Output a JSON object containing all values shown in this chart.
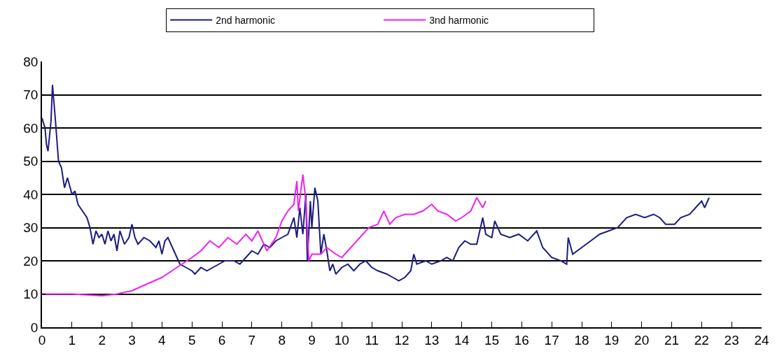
{
  "chart_data": {
    "type": "line",
    "xlim": [
      0,
      24
    ],
    "xticks": [
      0,
      1,
      2,
      3,
      4,
      5,
      6,
      7,
      8,
      9,
      10,
      11,
      12,
      13,
      14,
      15,
      16,
      17,
      18,
      19,
      20,
      21,
      22,
      23,
      24
    ],
    "ylim": [
      0,
      80
    ],
    "yticks": [
      0,
      10,
      20,
      30,
      40,
      50,
      60,
      70,
      80
    ],
    "grid": "y",
    "legend": "top",
    "marker": "none",
    "line_style": "solid",
    "series": [
      {
        "name": "2nd harmonic",
        "color": "#1c1c80",
        "x": [
          0,
          0.1,
          0.15,
          0.2,
          0.3,
          0.35,
          0.45,
          0.55,
          0.65,
          0.75,
          0.85,
          1.0,
          1.1,
          1.2,
          1.35,
          1.5,
          1.6,
          1.7,
          1.8,
          1.9,
          2.0,
          2.1,
          2.2,
          2.3,
          2.4,
          2.5,
          2.6,
          2.75,
          2.9,
          3.0,
          3.1,
          3.2,
          3.4,
          3.6,
          3.8,
          3.9,
          4.0,
          4.1,
          4.2,
          4.3,
          4.5,
          4.6,
          4.8,
          5.0,
          5.1,
          5.3,
          5.5,
          5.7,
          5.9,
          6.1,
          6.4,
          6.6,
          6.8,
          7.0,
          7.2,
          7.4,
          7.6,
          7.8,
          8.0,
          8.2,
          8.4,
          8.5,
          8.6,
          8.7,
          8.8,
          8.85,
          8.95,
          9.0,
          9.1,
          9.2,
          9.3,
          9.4,
          9.5,
          9.6,
          9.7,
          9.8,
          10.0,
          10.2,
          10.4,
          10.6,
          10.8,
          11.0,
          11.2,
          11.5,
          11.7,
          11.9,
          12.1,
          12.3,
          12.4,
          12.5,
          12.8,
          13.0,
          13.3,
          13.5,
          13.7,
          13.9,
          14.1,
          14.3,
          14.5,
          14.7,
          14.8,
          15.0,
          15.1,
          15.3,
          15.6,
          15.9,
          16.2,
          16.5,
          16.7,
          17.0,
          17.3,
          17.5,
          17.55,
          17.7,
          18.0,
          18.3,
          18.6,
          18.9,
          19.2,
          19.5,
          19.8,
          20.1,
          20.4,
          20.6,
          20.8,
          21.1,
          21.3,
          21.6,
          21.8,
          22.0,
          22.1,
          22.25
        ],
        "values": [
          63,
          60,
          55,
          53,
          62,
          73,
          62,
          50,
          48,
          42,
          45,
          40,
          41,
          37,
          35,
          33,
          30,
          25,
          29,
          27,
          28,
          25,
          29,
          26,
          28,
          23,
          29,
          25,
          27,
          31,
          27,
          25,
          27,
          26,
          24,
          26,
          22,
          26,
          27,
          25,
          21,
          19,
          18,
          17,
          16,
          18,
          17,
          18,
          19,
          20,
          20,
          19,
          21,
          23,
          22,
          25,
          24,
          26,
          27,
          28,
          33,
          27,
          36,
          28,
          40,
          20,
          38,
          30,
          42,
          38,
          22,
          28,
          23,
          17,
          19,
          16,
          18,
          19,
          17,
          19,
          20,
          18,
          17,
          16,
          15,
          14,
          15,
          17,
          22,
          19,
          20,
          19,
          20,
          21,
          20,
          24,
          26,
          25,
          25,
          33,
          28,
          27,
          32,
          28,
          27,
          28,
          26,
          29,
          24,
          21,
          20,
          19,
          27,
          22,
          24,
          26,
          28,
          29,
          30,
          33,
          34,
          33,
          34,
          33,
          31,
          31,
          33,
          34,
          36,
          38,
          36,
          39
        ]
      },
      {
        "name": "3nd harmonic",
        "color": "#ee22ee",
        "x": [
          0,
          1,
          2,
          2.5,
          3,
          3.5,
          4,
          4.5,
          5,
          5.3,
          5.6,
          5.9,
          6.2,
          6.5,
          6.8,
          7.0,
          7.2,
          7.5,
          7.8,
          8.0,
          8.2,
          8.4,
          8.5,
          8.55,
          8.7,
          8.8,
          8.9,
          9.0,
          9.3,
          9.5,
          9.8,
          10.0,
          10.3,
          10.6,
          10.9,
          11.2,
          11.4,
          11.6,
          11.8,
          12.1,
          12.4,
          12.7,
          13.0,
          13.2,
          13.5,
          13.8,
          14.0,
          14.3,
          14.5,
          14.7,
          14.8
        ],
        "values": [
          10,
          10,
          9.5,
          10,
          11,
          13,
          15,
          18,
          21,
          23,
          26,
          24,
          27,
          25,
          28,
          26,
          29,
          23,
          27,
          32,
          35,
          37,
          44,
          35,
          46,
          38,
          20,
          22,
          22,
          24,
          22,
          21,
          24,
          27,
          30,
          31,
          35,
          31,
          33,
          34,
          34,
          35,
          37,
          35,
          34,
          32,
          33,
          35,
          39,
          36,
          38
        ]
      }
    ]
  }
}
